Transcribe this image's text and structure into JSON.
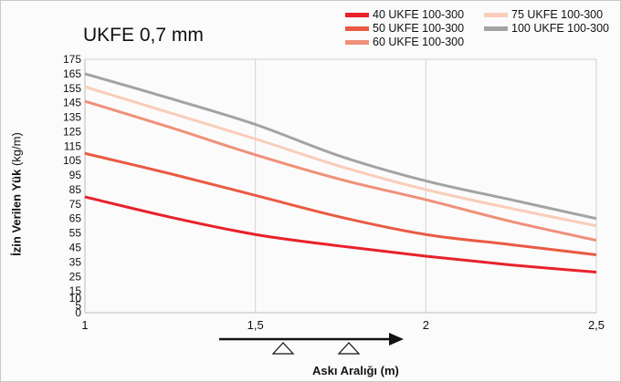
{
  "chart_data": {
    "type": "line",
    "title": "UKFE 0,7 mm",
    "xlabel": "Askı Aralığı (m)",
    "ylabel_bold": "İzin Verilen Yük",
    "ylabel_unit": "(kg/m)",
    "xlim": [
      1,
      2.5
    ],
    "ylim": [
      0,
      175
    ],
    "x_ticks": [
      "1",
      "1,5",
      "2",
      "2,5"
    ],
    "y_ticks": [
      "0",
      "5",
      "10",
      "15",
      "25",
      "35",
      "45",
      "55",
      "65",
      "75",
      "85",
      "95",
      "105",
      "115",
      "125",
      "135",
      "145",
      "155",
      "165",
      "175"
    ],
    "grid": true,
    "legend_position": "top-right",
    "x": [
      1,
      1.25,
      1.5,
      1.75,
      2,
      2.25,
      2.5
    ],
    "series": [
      {
        "name": "40 UKFE 100-300",
        "color": "#e8212a",
        "values": [
          80,
          66,
          54,
          46,
          39,
          33,
          28
        ]
      },
      {
        "name": "50 UKFE 100-300",
        "color": "#ea5a43",
        "values": [
          110,
          96,
          81,
          66,
          54,
          47,
          40
        ]
      },
      {
        "name": "60 UKFE 100-300",
        "color": "#f0907a",
        "values": [
          146,
          128,
          109,
          92,
          78,
          63,
          50
        ]
      },
      {
        "name": "75 UKFE 100-300",
        "color": "#f9cdb9",
        "values": [
          156,
          138,
          120,
          101,
          85,
          72,
          60
        ]
      },
      {
        "name": "100 UKFE 100-300",
        "color": "#a3a3a3",
        "values": [
          165,
          148,
          130,
          108,
          91,
          78,
          65
        ]
      }
    ]
  }
}
